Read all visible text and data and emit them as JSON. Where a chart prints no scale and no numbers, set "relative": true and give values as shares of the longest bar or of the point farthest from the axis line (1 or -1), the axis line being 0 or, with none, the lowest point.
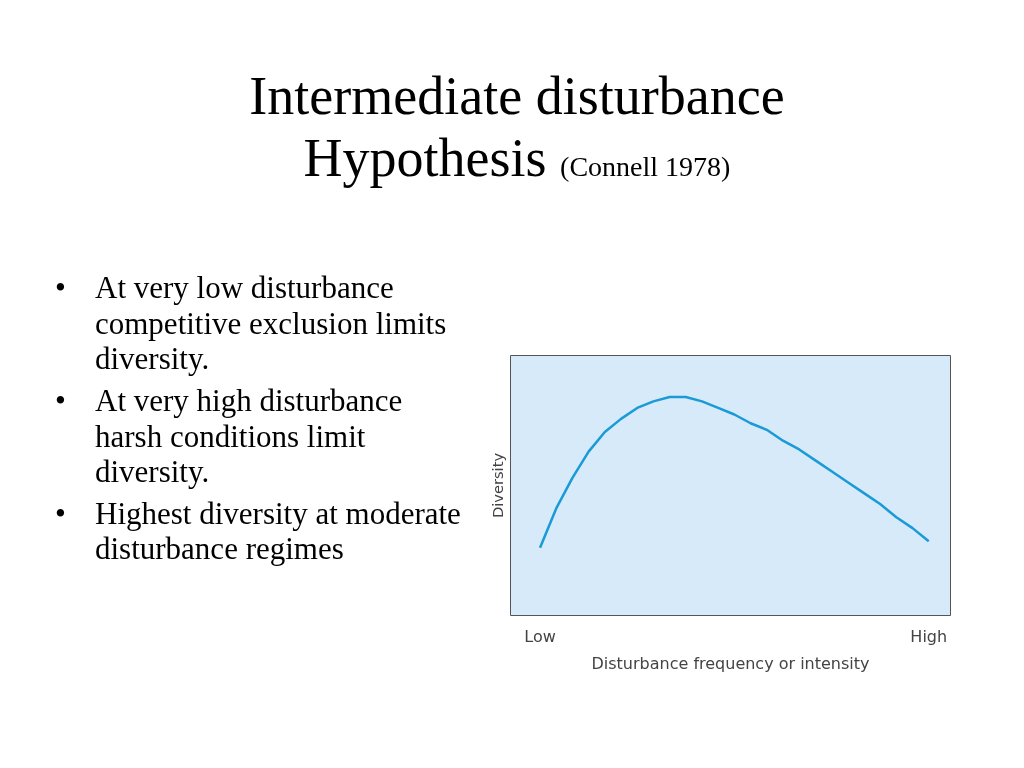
{
  "chart_data": {
    "type": "line",
    "title": "Intermediate disturbance Hypothesis",
    "subtitle": "(Connell 1978)",
    "annotations": [
      "• At very low disturbance competitive exclusion limits diversity.",
      "• At very high disturbance harsh conditions limit diversity.",
      "• Highest diversity at moderate disturbance regimes"
    ],
    "xlabel": "Disturbance frequency or intensity",
    "ylabel": "Diversity",
    "relative": true,
    "categories": [
      "Low",
      null,
      null,
      null,
      null,
      null,
      null,
      null,
      null,
      null,
      null,
      null,
      null,
      null,
      null,
      null,
      null,
      null,
      null,
      null,
      null,
      null,
      null,
      null,
      "High"
    ],
    "series": [
      {
        "color": "#1a9ad6",
        "values": [
          0.31,
          0.49,
          0.63,
          0.75,
          0.84,
          0.9,
          0.95,
          0.98,
          1.0,
          1.0,
          0.98,
          0.95,
          0.92,
          0.88,
          0.85,
          0.8,
          0.76,
          0.71,
          0.66,
          0.61,
          0.56,
          0.51,
          0.45,
          0.4,
          0.34
        ]
      }
    ],
    "grid": false,
    "marker": "none",
    "line_style": "solid"
  }
}
